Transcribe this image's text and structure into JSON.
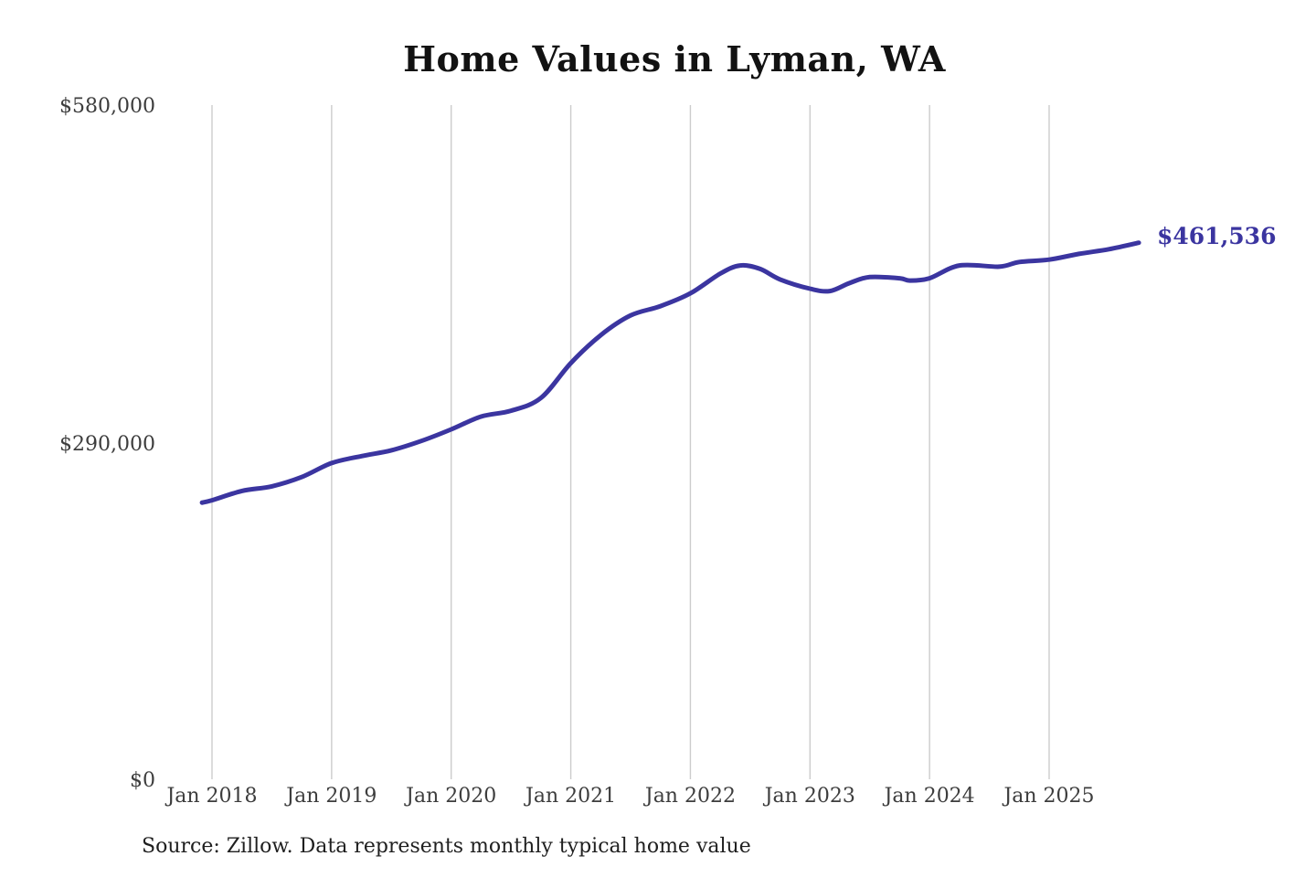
{
  "chart_data": {
    "type": "line",
    "title": "Home Values in Lyman, WA",
    "source_note": "Source: Zillow. Data represents monthly typical home value",
    "xlabel": "",
    "ylabel": "",
    "ylim": [
      0,
      580000
    ],
    "grid": "vertical-only",
    "legend": "none",
    "y_ticks": [
      {
        "label": "$0",
        "value": 0
      },
      {
        "label": "$290,000",
        "value": 290000
      },
      {
        "label": "$580,000",
        "value": 580000
      }
    ],
    "x_ticks": [
      "Jan 2018",
      "Jan 2019",
      "Jan 2020",
      "Jan 2021",
      "Jan 2022",
      "Jan 2023",
      "Jan 2024",
      "Jan 2025"
    ],
    "series": [
      {
        "points": [
          {
            "date": "Dec 2017",
            "value": 238000
          },
          {
            "date": "Jan 2018",
            "value": 240000
          },
          {
            "date": "Apr 2018",
            "value": 248000
          },
          {
            "date": "Jul 2018",
            "value": 252000
          },
          {
            "date": "Oct 2018",
            "value": 260000
          },
          {
            "date": "Jan 2019",
            "value": 272000
          },
          {
            "date": "Apr 2019",
            "value": 278000
          },
          {
            "date": "Jul 2019",
            "value": 283000
          },
          {
            "date": "Oct 2019",
            "value": 291000
          },
          {
            "date": "Jan 2020",
            "value": 301000
          },
          {
            "date": "Apr 2020",
            "value": 312000
          },
          {
            "date": "Jul 2020",
            "value": 317000
          },
          {
            "date": "Oct 2020",
            "value": 328000
          },
          {
            "date": "Jan 2021",
            "value": 358000
          },
          {
            "date": "Apr 2021",
            "value": 382000
          },
          {
            "date": "Jul 2021",
            "value": 399000
          },
          {
            "date": "Oct 2021",
            "value": 407000
          },
          {
            "date": "Jan 2022",
            "value": 418000
          },
          {
            "date": "Apr 2022",
            "value": 435000
          },
          {
            "date": "Jun 2022",
            "value": 442000
          },
          {
            "date": "Aug 2022",
            "value": 439000
          },
          {
            "date": "Oct 2022",
            "value": 430000
          },
          {
            "date": "Jan 2023",
            "value": 422000
          },
          {
            "date": "Mar 2023",
            "value": 420000
          },
          {
            "date": "May 2023",
            "value": 427000
          },
          {
            "date": "Jul 2023",
            "value": 432000
          },
          {
            "date": "Oct 2023",
            "value": 431000
          },
          {
            "date": "Nov 2023",
            "value": 429000
          },
          {
            "date": "Jan 2024",
            "value": 431000
          },
          {
            "date": "Apr 2024",
            "value": 442000
          },
          {
            "date": "Aug 2024",
            "value": 441000
          },
          {
            "date": "Oct 2024",
            "value": 445000
          },
          {
            "date": "Jan 2025",
            "value": 447000
          },
          {
            "date": "Apr 2025",
            "value": 452000
          },
          {
            "date": "Jul 2025",
            "value": 456000
          },
          {
            "date": "Oct 2025",
            "value": 461536
          }
        ]
      }
    ],
    "annotation": {
      "text": "$461,536",
      "position": "end-of-line"
    },
    "colors": {
      "line": "#3b35a0",
      "annotation": "#3b35a0",
      "grid": "#cccccc",
      "tick_text": "#3d3d3d",
      "title_text": "#121212",
      "source_text": "#1f1f1f"
    }
  }
}
